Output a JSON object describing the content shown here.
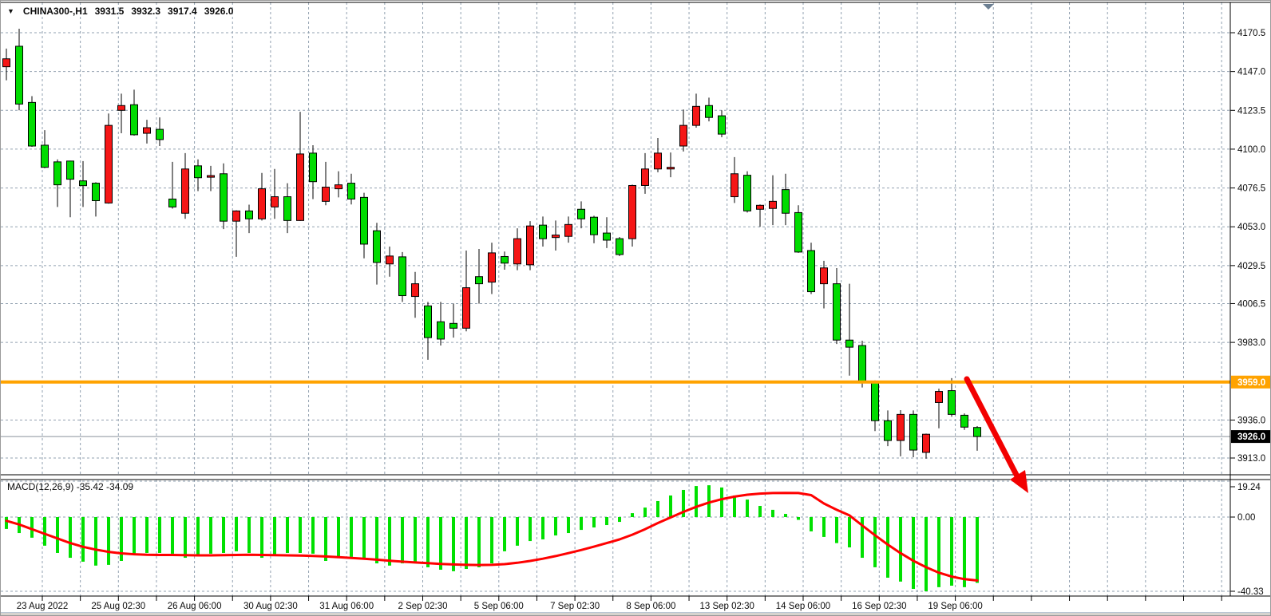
{
  "header": {
    "dropdown_icon": "▼",
    "symbol_period": "CHINA300-,H1",
    "open": "3931.5",
    "high": "3932.3",
    "low": "3917.4",
    "close": "3926.0"
  },
  "macd": {
    "display": "MACD(12,26,9) -35.42 -34.09"
  },
  "price_axis": {
    "tick_labels": [
      "4170.5",
      "4147.0",
      "4123.5",
      "4100.0",
      "4076.5",
      "4053.0",
      "4029.5",
      "4006.5",
      "3983.0",
      "3936.0",
      "3913.0"
    ],
    "orange_tag": "3959.0",
    "current_tag": "3926.0"
  },
  "macd_axis": {
    "tick_labels": [
      "19.24",
      "0.00",
      "-40.33"
    ]
  },
  "time_axis": {
    "labels": [
      "23 Aug 2022",
      "25 Aug 02:30",
      "26 Aug 06:00",
      "30 Aug 02:30",
      "31 Aug 06:00",
      "2 Sep 02:30",
      "5 Sep 06:00",
      "7 Sep 02:30",
      "8 Sep 06:00",
      "13 Sep 02:30",
      "14 Sep 06:00",
      "16 Sep 02:30",
      "19 Sep 06:00"
    ]
  },
  "colors": {
    "up": "#f51616",
    "down": "#00dc00",
    "wick": "#000000",
    "grid": "#92a1b0",
    "orange_line": "#ffa300",
    "bid_line": "#8a919b",
    "histogram": "#00e000",
    "signal": "#ff0000",
    "arrow": "#f20000",
    "tag_text": "#ffffff",
    "current_tag_bg": "#000000",
    "axis_text": "#0a0a0a",
    "shift_marker": "#6c7f92"
  },
  "chart_data": [
    {
      "type": "candlestick",
      "title": "CHINA300-,H1",
      "ohlc_display": "3931.5 3932.3 3917.4 3926.0",
      "ylabel": "price",
      "ylim": [
        3905,
        4177
      ],
      "grid": true,
      "y_ticks": [
        4170.5,
        4147.0,
        4123.5,
        4100.0,
        4076.5,
        4053.0,
        4029.5,
        4006.5,
        3983.0,
        3936.0,
        3913.0
      ],
      "horizontal_line": {
        "value": 3959.0
      },
      "current_price": {
        "value": 3926.0
      },
      "candles": [
        [
          4149.9,
          4160.9,
          4141.7,
          4154.7
        ],
        [
          4162.3,
          4172.9,
          4123.5,
          4127.3
        ],
        [
          4128.3,
          4132.1,
          4101.4,
          4101.9
        ],
        [
          4102.4,
          4111.5,
          4088.5,
          4089.0
        ],
        [
          4092.3,
          4093.8,
          4065.0,
          4078.4
        ],
        [
          4092.8,
          4093.0,
          4058.8,
          4081.8
        ],
        [
          4080.8,
          4092.8,
          4065.0,
          4077.9
        ],
        [
          4079.4,
          4080.0,
          4059.2,
          4068.8
        ],
        [
          4067.4,
          4121.6,
          4067.0,
          4114.4
        ],
        [
          4123.5,
          4133.6,
          4109.6,
          4126.4
        ],
        [
          4126.9,
          4136.0,
          4108.2,
          4108.7
        ],
        [
          4109.6,
          4117.8,
          4103.4,
          4113.0
        ],
        [
          4112.0,
          4119.2,
          4101.9,
          4105.8
        ],
        [
          4069.8,
          4092.3,
          4064.0,
          4065.0
        ],
        [
          4061.2,
          4097.6,
          4057.8,
          4088.0
        ],
        [
          4089.9,
          4093.8,
          4074.6,
          4082.7
        ],
        [
          4083.0,
          4089.9,
          4074.6,
          4084.0
        ],
        [
          4085.1,
          4091.4,
          4051.6,
          4056.4
        ],
        [
          4056.4,
          4063.0,
          4034.8,
          4062.6
        ],
        [
          4062.6,
          4066.4,
          4049.2,
          4057.8
        ],
        [
          4057.8,
          4085.6,
          4056.8,
          4076.0
        ],
        [
          4065.0,
          4088.0,
          4057.8,
          4071.2
        ],
        [
          4071.2,
          4079.4,
          4049.2,
          4056.8
        ],
        [
          4056.8,
          4122.6,
          4056.5,
          4097.1
        ],
        [
          4097.6,
          4102.4,
          4069.8,
          4080.3
        ],
        [
          4068.4,
          4092.3,
          4066.0,
          4077.0
        ],
        [
          4076.0,
          4086.6,
          4070.8,
          4078.4
        ],
        [
          4079.4,
          4085.1,
          4066.5,
          4069.8
        ],
        [
          4070.8,
          4073.6,
          4033.9,
          4042.5
        ],
        [
          4050.6,
          4055.4,
          4018.0,
          4031.4
        ],
        [
          4030.5,
          4041.0,
          4022.8,
          4035.3
        ],
        [
          4034.8,
          4037.7,
          4007.5,
          4011.3
        ],
        [
          4010.8,
          4025.7,
          3997.9,
          4018.5
        ],
        [
          4005.1,
          4007.5,
          3972.5,
          3985.9
        ],
        [
          3995.5,
          4007.5,
          3981.1,
          3985.0
        ],
        [
          3994.5,
          4006.5,
          3985.9,
          3991.6
        ],
        [
          3991.6,
          4038.6,
          3989.7,
          4016.1
        ],
        [
          4022.8,
          4039.6,
          4006.5,
          4018.5
        ],
        [
          4019.5,
          4043.4,
          4012.3,
          4037.2
        ],
        [
          4035.0,
          4038.0,
          4027.0,
          4031.0
        ],
        [
          4030.5,
          4052.1,
          4026.7,
          4045.8
        ],
        [
          4030.0,
          4056.4,
          4026.7,
          4053.5
        ],
        [
          4054.0,
          4059.2,
          4041.0,
          4045.8
        ],
        [
          4046.5,
          4056.8,
          4038.6,
          4048.0
        ],
        [
          4047.2,
          4059.2,
          4043.4,
          4054.4
        ],
        [
          4063.6,
          4068.4,
          4052.1,
          4057.8
        ],
        [
          4058.8,
          4059.7,
          4043.0,
          4048.2
        ],
        [
          4049.2,
          4058.8,
          4040.1,
          4044.9
        ],
        [
          4045.8,
          4046.8,
          4035.2,
          4036.2
        ],
        [
          4045.8,
          4078.5,
          4041.0,
          4078.0
        ],
        [
          4078.0,
          4097.6,
          4073.0,
          4088.0
        ],
        [
          4088.0,
          4106.7,
          4086.0,
          4097.6
        ],
        [
          4088.0,
          4098.0,
          4083.0,
          4089.0
        ],
        [
          4101.9,
          4124.0,
          4098.6,
          4114.4
        ],
        [
          4114.4,
          4133.6,
          4113.0,
          4125.9
        ],
        [
          4126.4,
          4131.2,
          4116.8,
          4119.2
        ],
        [
          4120.2,
          4123.5,
          4107.2,
          4109.1
        ],
        [
          4071.2,
          4095.2,
          4067.4,
          4085.1
        ],
        [
          4084.2,
          4086.6,
          4061.6,
          4062.6
        ],
        [
          4063.6,
          4066.5,
          4053.0,
          4066.0
        ],
        [
          4064.1,
          4084.2,
          4054.0,
          4068.4
        ],
        [
          4075.5,
          4085.1,
          4054.0,
          4061.2
        ],
        [
          4061.6,
          4066.0,
          4037.2,
          4037.7
        ],
        [
          4038.6,
          4043.4,
          4012.3,
          4013.7
        ],
        [
          4018.5,
          4032.4,
          4003.6,
          4028.1
        ],
        [
          4018.5,
          4028.0,
          3982.0,
          3984.4
        ],
        [
          3984.4,
          4018.5,
          3962.9,
          3980.1
        ],
        [
          3981.1,
          3984.0,
          3955.7,
          3959.5
        ],
        [
          3959.5,
          3960.0,
          3929.3,
          3935.6
        ],
        [
          3935.6,
          3941.8,
          3920.2,
          3923.6
        ],
        [
          3923.6,
          3942.0,
          3914.0,
          3939.4
        ],
        [
          3939.4,
          3941.8,
          3913.5,
          3917.8
        ],
        [
          3916.4,
          3927.8,
          3912.6,
          3927.4
        ],
        [
          3946.6,
          3955.0,
          3931.0,
          3953.3
        ],
        [
          3953.8,
          3961.4,
          3938.0,
          3939.4
        ],
        [
          3938.9,
          3940.0,
          3930.0,
          3931.7
        ],
        [
          3931.5,
          3932.3,
          3917.4,
          3926.0
        ]
      ]
    },
    {
      "type": "bar",
      "title": "MACD(12,26,9)",
      "last_values": {
        "main": -35.42,
        "signal": -34.09
      },
      "ylim": [
        -40.33,
        19.24
      ],
      "y_ticks": [
        19.24,
        0.0,
        -40.33
      ],
      "series": [
        {
          "name": "histogram",
          "values": [
            -6.4,
            -8.6,
            -11.1,
            -15.4,
            -19.3,
            -21.9,
            -24.0,
            -26.1,
            -25.7,
            -23.6,
            -20.6,
            -19.3,
            -19.3,
            -19.7,
            -21.9,
            -20.6,
            -19.7,
            -19.3,
            -18.4,
            -19.3,
            -21.9,
            -20.6,
            -19.3,
            -19.3,
            -19.7,
            -23.6,
            -21.9,
            -21.4,
            -21.9,
            -24.9,
            -26.1,
            -24.9,
            -24.9,
            -27.0,
            -28.3,
            -29.1,
            -27.9,
            -27.0,
            -24.9,
            -18.4,
            -15.4,
            -12.9,
            -12.0,
            -9.9,
            -8.6,
            -6.9,
            -5.6,
            -4.3,
            -2.6,
            2.1,
            5.1,
            8.6,
            11.6,
            14.6,
            16.7,
            17.1,
            15.9,
            11.6,
            9.4,
            6.0,
            3.9,
            1.7,
            -1.5,
            -7.7,
            -10.7,
            -14.0,
            -16.3,
            -21.9,
            -27.0,
            -32.6,
            -34.7,
            -38.6,
            -39.9,
            -37.7,
            -36.9,
            -37.7,
            -35.42
          ]
        },
        {
          "name": "signal",
          "values": [
            -2.0,
            -4.0,
            -6.5,
            -9.0,
            -11.5,
            -14.0,
            -16.0,
            -17.5,
            -18.7,
            -19.5,
            -20.0,
            -20.3,
            -20.4,
            -20.4,
            -20.5,
            -20.6,
            -20.6,
            -20.5,
            -20.4,
            -20.3,
            -20.4,
            -20.5,
            -20.6,
            -20.7,
            -20.9,
            -21.2,
            -21.6,
            -22.0,
            -22.4,
            -22.9,
            -23.5,
            -24.0,
            -24.4,
            -24.8,
            -25.2,
            -25.5,
            -25.7,
            -25.8,
            -25.7,
            -25.3,
            -24.6,
            -23.6,
            -22.4,
            -21.0,
            -19.4,
            -17.7,
            -15.9,
            -14.0,
            -12.0,
            -9.5,
            -6.5,
            -3.2,
            -0.2,
            2.8,
            5.5,
            7.8,
            9.6,
            11.0,
            12.0,
            12.6,
            12.9,
            13.0,
            12.9,
            11.8,
            7.3,
            3.9,
            0.9,
            -4.5,
            -9.8,
            -14.8,
            -19.4,
            -23.5,
            -27.0,
            -29.9,
            -32.0,
            -33.4,
            -34.09
          ]
        }
      ]
    }
  ]
}
